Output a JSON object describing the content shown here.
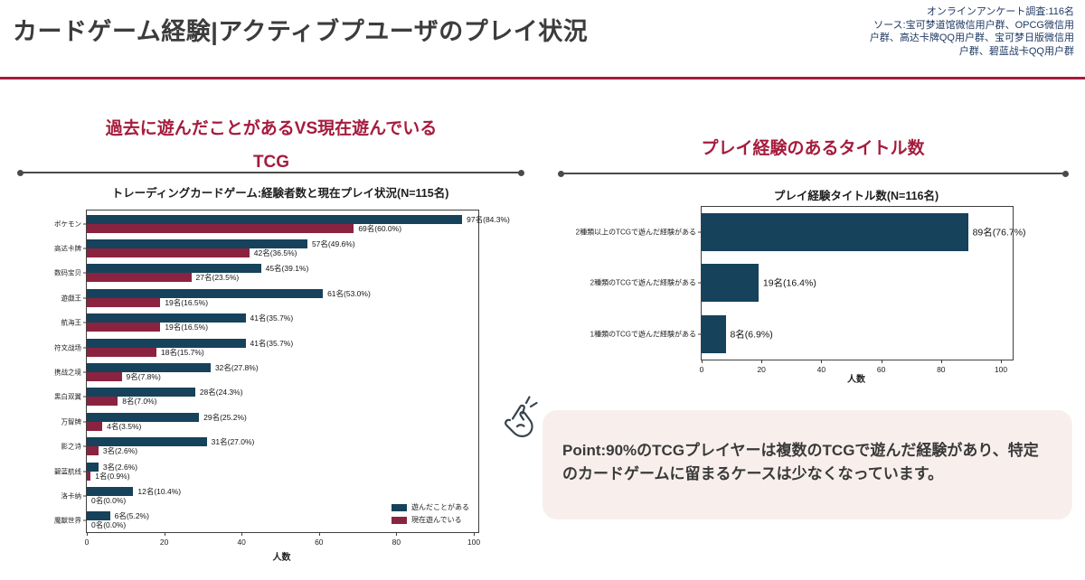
{
  "header": {
    "title": "カードゲーム経験|アクティブプユーザのプレイ状況",
    "meta_lines": [
      "オンラインアンケート調査:116名",
      "ソース:宝可梦道馆微信用户群、OPCG微信用",
      "户群、高达卡牌QQ用户群、宝可梦日版微信用",
      "户群、碧蓝战卡QQ用户群"
    ]
  },
  "colors": {
    "accent_red": "#a51c3d",
    "navy": "#16425c",
    "crimson": "#8b2340",
    "point_bg": "#f8efec",
    "meta_text": "#203a64"
  },
  "left_section": {
    "heading_line1": "過去に遊んだことがあるVS現在遊んでいる",
    "heading_line2": "TCG"
  },
  "right_section": {
    "heading": "プレイ経験のあるタイトル数"
  },
  "point": {
    "text": "Point:90%のTCGプレイヤーは複数のTCGで遊んだ経験があり、特定のカードゲームに留まるケースは少なくなっています。"
  },
  "chart_data": [
    {
      "type": "bar",
      "orientation": "horizontal",
      "title": "トレーディングカードゲーム:経験者数と現在プレイ状況(N=115名)",
      "xlabel": "人数",
      "xlim": [
        0,
        100
      ],
      "xticks": [
        0,
        20,
        40,
        60,
        80,
        100
      ],
      "grid": false,
      "legend_position": "lower right",
      "categories": [
        "ポケモン",
        "高达卡牌",
        "数码宝贝",
        "遊戯王",
        "航海王",
        "符文战场",
        "携战之境",
        "黑白双翼",
        "万智牌",
        "影之诗",
        "碧蓝航线",
        "洛卡纳",
        "魔獣世界"
      ],
      "series": [
        {
          "name": "遊んだことがある",
          "color": "#16425c",
          "values": [
            97,
            57,
            45,
            61,
            41,
            41,
            32,
            28,
            29,
            31,
            3,
            12,
            6
          ],
          "labels": [
            "97名(84.3%)",
            "57名(49.6%)",
            "45名(39.1%)",
            "61名(53.0%)",
            "41名(35.7%)",
            "41名(35.7%)",
            "32名(27.8%)",
            "28名(24.3%)",
            "29名(25.2%)",
            "31名(27.0%)",
            "3名(2.6%)",
            "12名(10.4%)",
            "6名(5.2%)"
          ]
        },
        {
          "name": "現在遊んでいる",
          "color": "#8b2340",
          "values": [
            69,
            42,
            27,
            19,
            19,
            18,
            9,
            8,
            4,
            3,
            1,
            0,
            0
          ],
          "labels": [
            "69名(60.0%)",
            "42名(36.5%)",
            "27名(23.5%)",
            "19名(16.5%)",
            "19名(16.5%)",
            "18名(15.7%)",
            "9名(7.8%)",
            "8名(7.0%)",
            "4名(3.5%)",
            "3名(2.6%)",
            "1名(0.9%)",
            "0名(0.0%)",
            "0名(0.0%)"
          ]
        }
      ]
    },
    {
      "type": "bar",
      "orientation": "horizontal",
      "title": "プレイ経験タイトル数(N=116名)",
      "xlabel": "人数",
      "xlim": [
        0,
        100
      ],
      "xticks": [
        0,
        20,
        40,
        60,
        80,
        100
      ],
      "grid": false,
      "categories": [
        "2種類以上のTCGで遊んだ経験がある",
        "2種類のTCGで遊んだ経験がある",
        "1種類のTCGで遊んだ経験がある"
      ],
      "series": [
        {
          "name": "人数",
          "color": "#16425c",
          "values": [
            89,
            19,
            8
          ],
          "labels": [
            "89名(76.7%)",
            "19名(16.4%)",
            "8名(6.9%)"
          ]
        }
      ]
    }
  ]
}
